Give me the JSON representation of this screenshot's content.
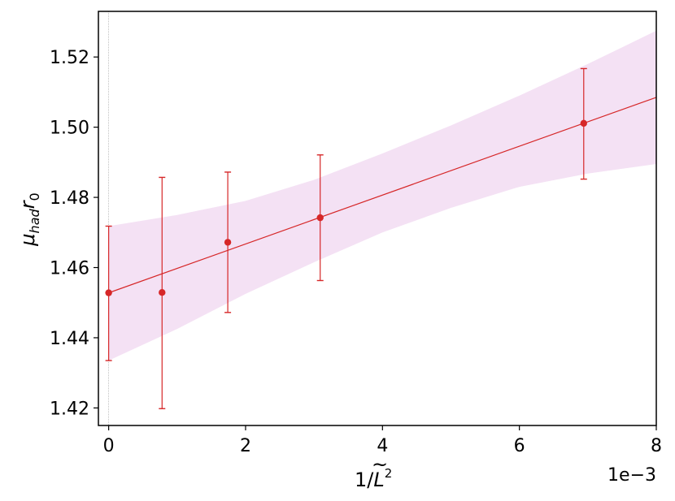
{
  "chart_data": {
    "type": "scatter",
    "title": "",
    "xlabel_parts": {
      "prefix": "1/",
      "symbol": "L",
      "accent": "~",
      "exponent": "2"
    },
    "ylabel_parts": {
      "mu": "μ",
      "mu_sub": "had",
      "r": "r",
      "r_sub": "0"
    },
    "x_offset_label": "1e−3",
    "xlim": [
      -0.00015,
      0.008
    ],
    "ylim": [
      1.415,
      1.533
    ],
    "x_ticks": [
      0,
      0.002,
      0.004,
      0.006,
      0.008
    ],
    "x_tick_labels": [
      "0",
      "2",
      "4",
      "6",
      "8"
    ],
    "y_ticks": [
      1.42,
      1.44,
      1.46,
      1.48,
      1.5,
      1.52
    ],
    "y_tick_labels": [
      "1.42",
      "1.44",
      "1.46",
      "1.48",
      "1.50",
      "1.52"
    ],
    "grid": false,
    "vline_x": 0,
    "points": [
      {
        "x": 0.0,
        "y": 1.4528,
        "yerr_low": 1.4335,
        "yerr_high": 1.4718
      },
      {
        "x": 0.00078,
        "y": 1.4529,
        "yerr_low": 1.4198,
        "yerr_high": 1.4857
      },
      {
        "x": 0.00174,
        "y": 1.4672,
        "yerr_low": 1.4472,
        "yerr_high": 1.4872
      },
      {
        "x": 0.00309,
        "y": 1.4742,
        "yerr_low": 1.4563,
        "yerr_high": 1.4921
      },
      {
        "x": 0.00694,
        "y": 1.5011,
        "yerr_low": 1.4852,
        "yerr_high": 1.5167
      }
    ],
    "fit_line": {
      "x": [
        0.0,
        0.008
      ],
      "y": [
        1.4528,
        1.5085
      ]
    },
    "fit_band": {
      "x": [
        0.0,
        0.001,
        0.002,
        0.003,
        0.004,
        0.005,
        0.006,
        0.007,
        0.008
      ],
      "lower": [
        1.4335,
        1.4425,
        1.4525,
        1.4615,
        1.47,
        1.477,
        1.483,
        1.4868,
        1.4895
      ],
      "upper": [
        1.4718,
        1.475,
        1.479,
        1.485,
        1.4925,
        1.5005,
        1.509,
        1.518,
        1.5275
      ]
    },
    "colors": {
      "series": "#d62728",
      "band": "#f4e1f4",
      "axis": "#000000",
      "vline": "#999999"
    }
  }
}
